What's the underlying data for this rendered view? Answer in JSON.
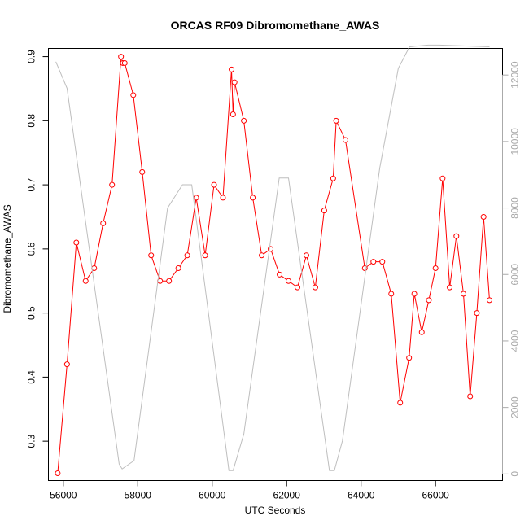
{
  "chart_data": {
    "type": "line",
    "title": "ORCAS RF09 Dibromomethane_AWAS",
    "xlabel": "UTC Seconds",
    "ylabel": "Dibromomethane_AWAS",
    "xlim": [
      55600,
      67800
    ],
    "ylim": [
      0.2386,
      0.9128
    ],
    "y2lim": [
      -200,
      12800
    ],
    "x_ticks": [
      56000,
      58000,
      60000,
      62000,
      64000,
      66000
    ],
    "y_ticks": [
      0.3,
      0.4,
      0.5,
      0.6,
      0.7,
      0.8,
      0.9
    ],
    "y2_ticks": [
      0,
      2000,
      4000,
      6000,
      8000,
      10000,
      12000
    ],
    "colors": {
      "primary": "#ff0000",
      "secondary": "#bebebe"
    },
    "series": [
      {
        "axis": "left",
        "style": "line-markers",
        "color": "#ff0000",
        "x": [
          55850,
          56100,
          56350,
          56600,
          56830,
          57070,
          57310,
          57550,
          57600,
          57650,
          57880,
          58120,
          58360,
          58600,
          58840,
          59090,
          59330,
          59570,
          59810,
          60050,
          60290,
          60520,
          60560,
          60600,
          60850,
          61090,
          61330,
          61570,
          61810,
          62050,
          62290,
          62530,
          62770,
          63010,
          63250,
          63330,
          63580,
          64100,
          64330,
          64570,
          64810,
          65050,
          65290,
          65430,
          65630,
          65820,
          66000,
          66190,
          66380,
          66560,
          66750,
          66930,
          67110,
          67290,
          67450
        ],
        "y": [
          0.25,
          0.42,
          0.61,
          0.55,
          0.57,
          0.64,
          0.7,
          0.9,
          0.89,
          0.89,
          0.84,
          0.72,
          0.59,
          0.55,
          0.55,
          0.57,
          0.59,
          0.68,
          0.59,
          0.7,
          0.68,
          0.88,
          0.81,
          0.86,
          0.8,
          0.68,
          0.59,
          0.6,
          0.56,
          0.55,
          0.54,
          0.59,
          0.54,
          0.66,
          0.71,
          0.8,
          0.77,
          0.57,
          0.58,
          0.58,
          0.53,
          0.36,
          0.43,
          0.53,
          0.47,
          0.52,
          0.57,
          0.71,
          0.54,
          0.62,
          0.53,
          0.37,
          0.5,
          0.65,
          0.52
        ]
      },
      {
        "axis": "right",
        "style": "line",
        "color": "#bebebe",
        "x": [
          55800,
          56100,
          57500,
          57580,
          57900,
          58800,
          59200,
          59450,
          60450,
          60560,
          60850,
          61800,
          62050,
          63150,
          63280,
          63500,
          64500,
          65000,
          65300,
          65800,
          66100,
          67450
        ],
        "y": [
          12400,
          11600,
          300,
          150,
          400,
          8000,
          8700,
          8700,
          100,
          100,
          1200,
          8900,
          8900,
          100,
          100,
          1000,
          9200,
          12200,
          12850,
          12900,
          12900,
          12850
        ]
      }
    ]
  }
}
